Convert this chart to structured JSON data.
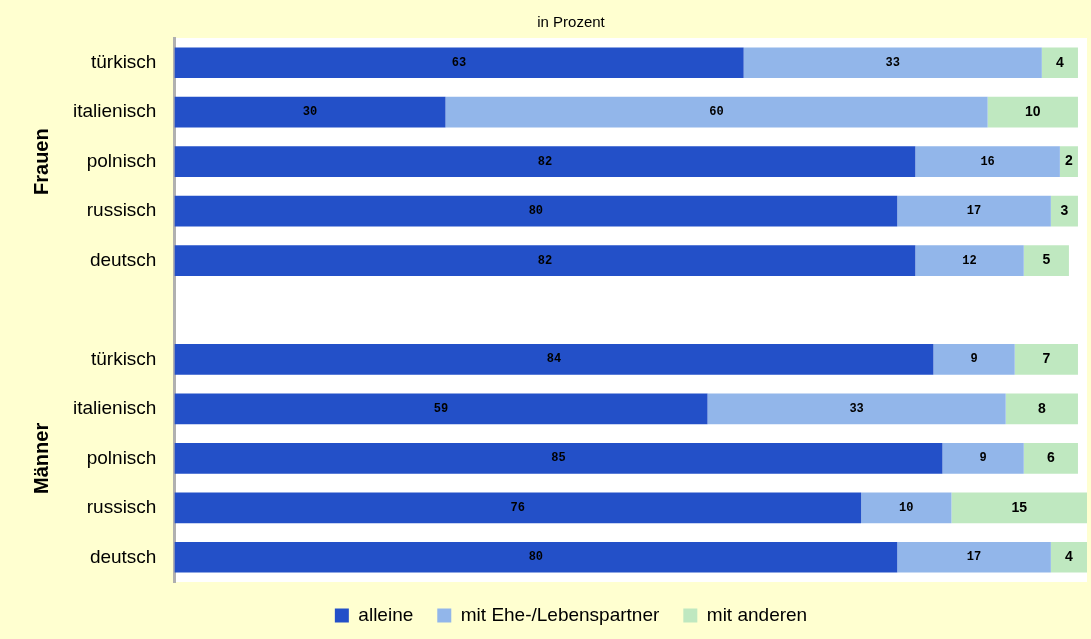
{
  "chart_data": {
    "type": "bar",
    "orientation": "horizontal",
    "stacked": true,
    "title": "in Prozent",
    "categories": [
      "türkisch",
      "italienisch",
      "polnisch",
      "russisch",
      "deutsch",
      null,
      "türkisch",
      "italienisch",
      "polnisch",
      "russisch",
      "deutsch"
    ],
    "series": [
      {
        "name": "alleine",
        "color": "#2350c8",
        "values": [
          63,
          30,
          82,
          80,
          82,
          null,
          84,
          59,
          85,
          76,
          80
        ]
      },
      {
        "name": "mit Ehe-/Lebenspartner",
        "color": "#92b6ea",
        "values": [
          33,
          60,
          16,
          17,
          12,
          null,
          9,
          33,
          9,
          10,
          17
        ]
      },
      {
        "name": "mit anderen",
        "color": "#bfe8c0",
        "values": [
          4,
          10,
          2,
          3,
          5,
          null,
          7,
          8,
          6,
          15,
          4
        ]
      }
    ],
    "annotations": [
      "Frauen",
      "Männer"
    ],
    "data_labels": true,
    "legend": "bottom",
    "grid": false,
    "tick_labels": "y"
  }
}
